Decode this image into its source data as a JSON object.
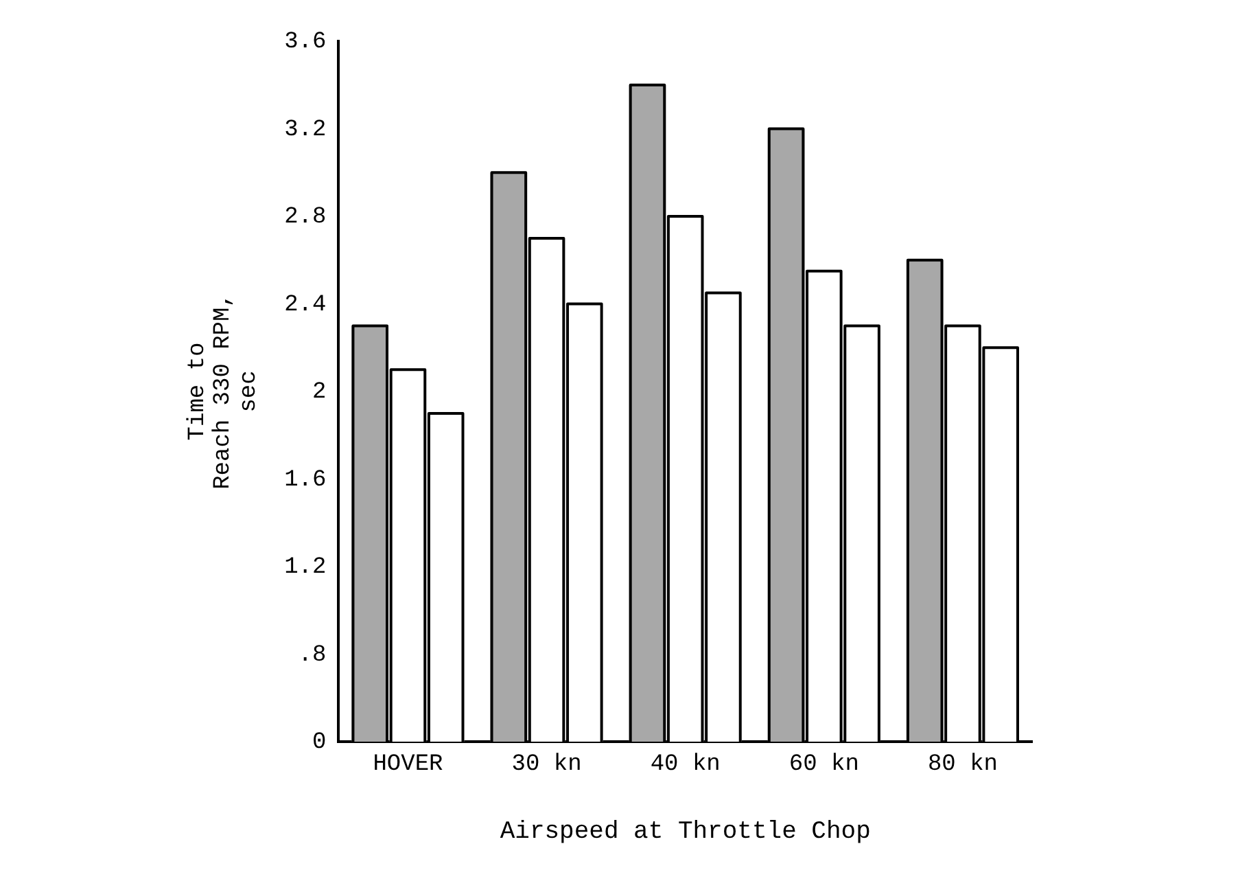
{
  "chart_data": {
    "type": "bar",
    "xlabel": "Airspeed at Throttle Chop",
    "ylabel": "Time to\nReach 330 RPM,\nsec",
    "categories": [
      "HOVER",
      "30 kn",
      "40 kn",
      "60 kn",
      "80 kn"
    ],
    "series": [
      {
        "color": "#a8a8a8",
        "values": [
          2.3,
          3.0,
          3.4,
          3.2,
          2.6
        ]
      },
      {
        "color": "#ffffff",
        "values": [
          2.1,
          2.7,
          2.8,
          2.55,
          2.3
        ]
      },
      {
        "color": "#ffffff",
        "values": [
          1.9,
          2.4,
          2.45,
          2.3,
          2.2
        ]
      }
    ],
    "ylim": [
      0.4,
      3.6
    ],
    "yticks": [
      {
        "value": 0.4,
        "label": "0"
      },
      {
        "value": 0.8,
        "label": ".8"
      },
      1.2,
      1.6,
      2.0,
      2.4,
      2.8,
      3.2,
      3.6
    ],
    "grid": false,
    "legend": false
  }
}
